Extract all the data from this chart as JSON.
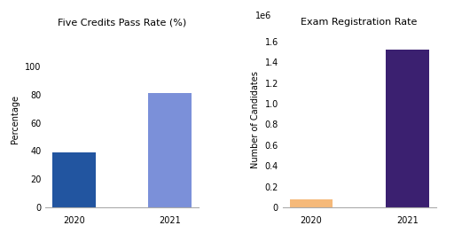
{
  "chart1_title": "Five Credits Pass Rate (%)",
  "chart1_ylabel": "Percentage",
  "chart1_categories": [
    "2020",
    "2021"
  ],
  "chart1_values": [
    39,
    81
  ],
  "chart1_colors": [
    "#2255a0",
    "#7b90d9"
  ],
  "chart1_ylim": [
    0,
    125
  ],
  "chart1_yticks": [
    0,
    20,
    40,
    60,
    80,
    100
  ],
  "chart2_title": "Exam Registration Rate",
  "chart2_ylabel": "Number of Candidates",
  "chart2_categories": [
    "2020",
    "2021"
  ],
  "chart2_values": [
    80000,
    1520000
  ],
  "chart2_colors": [
    "#f5b97a",
    "#3b2070"
  ],
  "chart2_ylim": [
    0,
    1700000
  ],
  "chart2_yticks": [
    0,
    200000,
    400000,
    600000,
    800000,
    1000000,
    1200000,
    1400000,
    1600000
  ],
  "bg_color": "#ffffff",
  "title_fontsize": 8,
  "label_fontsize": 7,
  "tick_fontsize": 7
}
